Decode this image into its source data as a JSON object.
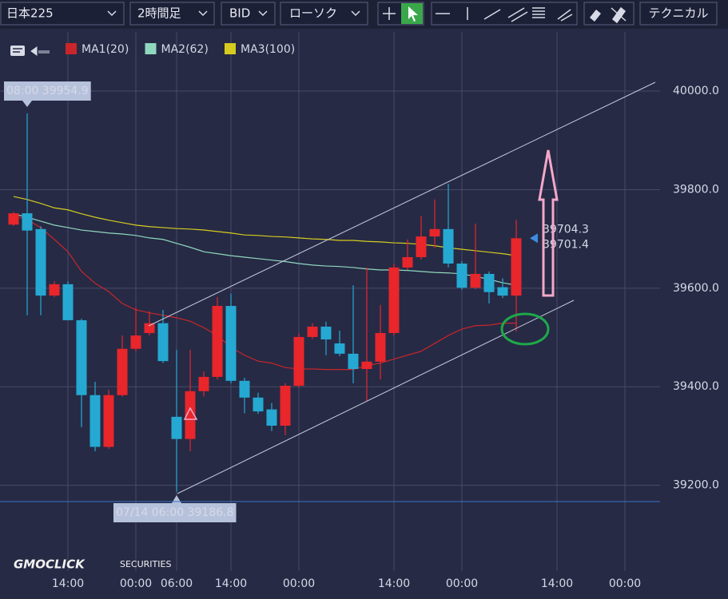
{
  "toolbar": {
    "symbol": "日本225",
    "timeframe": "2時間足",
    "price_type": "BID",
    "chart_style": "ローソク",
    "technical": "テクニカル"
  },
  "logo": {
    "brand": "GMOCLICK",
    "sub": "SECURITIES"
  },
  "chart_data": {
    "type": "candlestick",
    "categories": [
      null,
      null,
      null,
      null,
      "14:00",
      null,
      null,
      null,
      null,
      "00:00",
      null,
      null,
      "06:00",
      null,
      null,
      null,
      "14:00",
      null,
      null,
      null,
      null,
      "00:00",
      null,
      null,
      null,
      null,
      null,
      null,
      "14:00",
      null,
      null,
      null,
      null,
      "00:00",
      null,
      null,
      null,
      null,
      null,
      null,
      "14:00",
      null,
      null,
      null,
      null,
      "00:00"
    ],
    "open": [
      39729,
      39752,
      39720,
      39585,
      39608,
      39535,
      39383,
      39278,
      39383,
      39477,
      39509,
      39529,
      39339,
      39294,
      39391,
      39420,
      39564,
      39412,
      39378,
      39354,
      39321,
      39402,
      39501,
      39522,
      39488,
      39467,
      39436,
      39451,
      39509,
      39642,
      39663,
      39705,
      39720,
      39650,
      39601,
      39629,
      39602,
      39585,
      null,
      null,
      null,
      null,
      null,
      null,
      null,
      null
    ],
    "high": [
      39755,
      39954.9,
      39726,
      39614,
      39614,
      39538,
      39410,
      39394,
      39504,
      39561,
      39553,
      39556,
      39475,
      39475,
      39431,
      39582,
      39589,
      39418,
      39388,
      39367,
      39407,
      39508,
      39529,
      39532,
      39514,
      39606,
      39642,
      39566,
      39650,
      39699,
      39747,
      39780,
      39812,
      39655,
      39731,
      39634,
      39620,
      39739,
      null,
      null,
      null,
      null,
      null,
      null,
      null,
      null
    ],
    "low": [
      39726,
      39545,
      39545,
      39582,
      39535,
      39318,
      39269,
      39274,
      39380,
      39472,
      39504,
      39448,
      39186.8,
      39269,
      39380,
      39415,
      39407,
      39346,
      39345,
      39310,
      39302,
      39399,
      39497,
      39464,
      39462,
      39407,
      39371,
      39415,
      39504,
      39637,
      39658,
      39682,
      39642,
      39597,
      39598,
      39569,
      39580,
      39512,
      null,
      null,
      null,
      null,
      null,
      null,
      null,
      null
    ],
    "close": [
      39752,
      39717,
      39585,
      39608,
      39535,
      39383,
      39278,
      39383,
      39477,
      39504,
      39529,
      39452,
      39294,
      39391,
      39420,
      39564,
      39412,
      39378,
      39350,
      39321,
      39402,
      39501,
      39522,
      39496,
      39467,
      39436,
      39451,
      39509,
      39642,
      39663,
      39705,
      39720,
      39650,
      39601,
      39629,
      39592,
      39585,
      39701.4,
      null,
      null,
      null,
      null,
      null,
      null,
      null,
      null
    ],
    "up_color": "#e8262b",
    "down_color": "#25a9d2",
    "series": [
      {
        "name": "MA1(20)",
        "color": "#c8262a",
        "values": [
          39747,
          39739,
          39723,
          39699,
          39674,
          39634,
          39610,
          39593,
          39569,
          39556,
          39550,
          39545,
          39540,
          39533,
          39520,
          39504,
          39480,
          39464,
          39452,
          39448,
          39439,
          39436,
          39436,
          39435,
          39435,
          39435,
          39443,
          39448,
          39456,
          39464,
          39472,
          39488,
          39504,
          39517,
          39524,
          39525,
          39529,
          39529,
          null,
          null,
          null,
          null,
          null,
          null,
          null,
          null
        ]
      },
      {
        "name": "MA2(62)",
        "color": "#8fd8bd",
        "values": [
          39751,
          39744,
          39736,
          39728,
          39723,
          39718,
          39715,
          39712,
          39710,
          39707,
          39702,
          39699,
          39691,
          39683,
          39674,
          39670,
          39666,
          39663,
          39660,
          39657,
          39654,
          39650,
          39647,
          39645,
          39644,
          39642,
          39639,
          39637,
          39637,
          39636,
          39634,
          39632,
          39631,
          39629,
          39624,
          39618,
          39611,
          39606,
          null,
          null,
          null,
          null,
          null,
          null,
          null,
          null
        ]
      },
      {
        "name": "MA3(100)",
        "color": "#d6cc1e",
        "values": [
          39786,
          39780,
          39772,
          39763,
          39759,
          39751,
          39744,
          39738,
          39733,
          39728,
          39725,
          39723,
          39721,
          39720,
          39718,
          39715,
          39712,
          39708,
          39707,
          39705,
          39704,
          39702,
          39700,
          39699,
          39697,
          39697,
          39695,
          39694,
          39692,
          39691,
          39689,
          39686,
          39682,
          39679,
          39676,
          39673,
          39670,
          39666,
          null,
          null,
          null,
          null,
          null,
          null,
          null,
          null
        ]
      }
    ],
    "ylim": [
      39026,
      40120
    ],
    "yticks": [
      {
        "value": 39200,
        "label": "39200.0"
      },
      {
        "value": 39400,
        "label": "39400.0"
      },
      {
        "value": 39600,
        "label": "39600.0"
      },
      {
        "value": 39800,
        "label": "39800.0"
      },
      {
        "value": 40000,
        "label": "40000.0"
      }
    ],
    "grid": true,
    "annotations": [
      {
        "text": "08:00 39954.9"
      },
      {
        "text": "07/14 06:00 39186.8"
      }
    ],
    "price_labels": [
      {
        "value": 39704.3,
        "label": "39704.3",
        "color": "#e04848"
      },
      {
        "value": 39701.4,
        "label": "39701.4",
        "color": "#3f8ce0"
      }
    ]
  }
}
